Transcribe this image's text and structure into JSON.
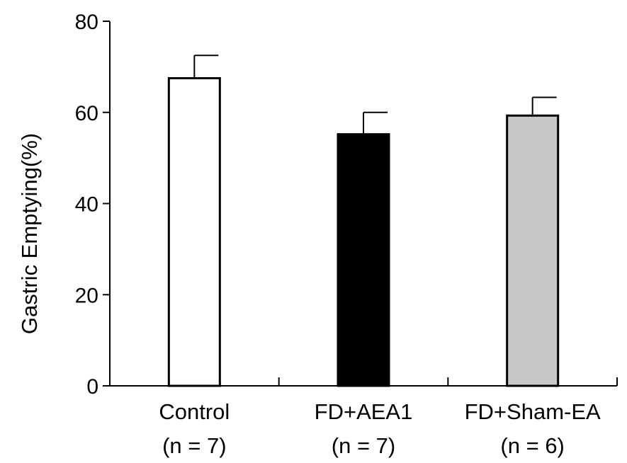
{
  "chart_data": {
    "type": "bar",
    "title": "",
    "ylabel": "Gastric Emptying(%)",
    "xlabel": "",
    "ylim": [
      0,
      80
    ],
    "yticks": [
      0,
      20,
      40,
      60,
      80
    ],
    "categories": [
      {
        "label": "Control",
        "n_label": "(n = 7)",
        "value": 67.5,
        "error": 5.0,
        "fill": "#ffffff"
      },
      {
        "label": "FD+AEA1",
        "n_label": "(n = 7)",
        "value": 55.2,
        "error": 4.8,
        "fill": "#000000"
      },
      {
        "label": "FD+Sham-EA",
        "n_label": "(n = 6)",
        "value": 59.3,
        "error": 4.0,
        "fill": "#c8c8c8"
      }
    ],
    "grid": false,
    "legend": "none"
  }
}
